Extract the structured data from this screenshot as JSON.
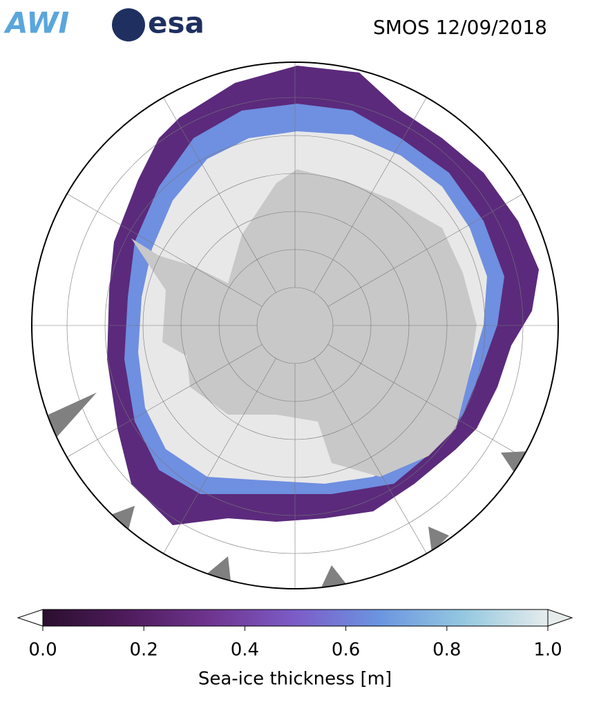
{
  "header": {
    "logos": [
      "AWI",
      "esa"
    ],
    "title": "SMOS 12/09/2018"
  },
  "colorbar": {
    "label": "Sea-ice thickness [m]",
    "lim": [
      0,
      1
    ],
    "ticks": [
      {
        "value": 0,
        "label": "0.0"
      },
      0.2,
      0.4,
      0.6,
      0.8,
      {
        "value": 1,
        "label": "1.0"
      }
    ],
    "colors": [
      "#2a0f2e",
      "#4f1b5c",
      "#6f3590",
      "#7c5cc8",
      "#6b95e0",
      "#94c8e0",
      "#e6ecec"
    ]
  }
}
